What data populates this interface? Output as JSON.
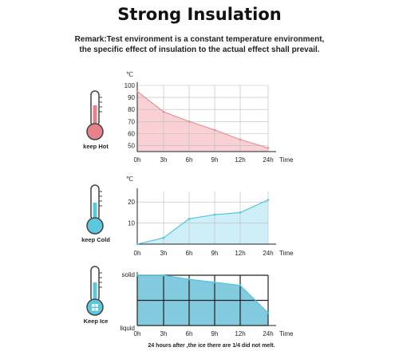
{
  "header": {
    "title": "Strong Insulation",
    "remark_line1": "Remark:Test environment is a constant temperature environment,",
    "remark_line2": "the specific effect of insulation to the actual effect shall prevail."
  },
  "icons": [
    {
      "name": "thermometer-hot-icon",
      "label": "keep Hot",
      "color": "#e8828a"
    },
    {
      "name": "thermometer-cold-icon",
      "label": "keep Cold",
      "color": "#5bc8e0"
    },
    {
      "name": "thermometer-ice-icon",
      "label": "Keep Ice",
      "color": "#5bc8e0"
    }
  ],
  "chart_data": [
    {
      "type": "area",
      "title": "",
      "xlabel": "Time",
      "ylabel": "℃",
      "x": [
        "0h",
        "3h",
        "6h",
        "9h",
        "12h",
        "24h"
      ],
      "series": [
        {
          "values": [
            95,
            78,
            70,
            63,
            55,
            48
          ]
        }
      ],
      "yticks": [
        50,
        60,
        70,
        80,
        90,
        100
      ],
      "ylim": [
        45,
        100
      ],
      "grid": true,
      "color": "#e88a92",
      "fill": "#f7c6ca"
    },
    {
      "type": "area",
      "title": "",
      "xlabel": "Time",
      "ylabel": "℃",
      "x": [
        "0h",
        "3h",
        "6h",
        "9h",
        "12h",
        "24h"
      ],
      "series": [
        {
          "values": [
            0,
            3,
            12,
            14,
            15,
            21
          ]
        }
      ],
      "yticks": [
        10,
        20
      ],
      "ylim": [
        0,
        25
      ],
      "grid": true,
      "color": "#4ec3e0",
      "fill": "#c2ebf5"
    },
    {
      "type": "area",
      "title": "",
      "xlabel": "Time",
      "ylabel": "",
      "x": [
        "0h",
        "3h",
        "6h",
        "9h",
        "12h",
        "24h"
      ],
      "series": [
        {
          "values": [
            1.0,
            1.0,
            0.92,
            0.86,
            0.8,
            0.25
          ]
        }
      ],
      "yticks": [
        "liquid",
        "solid"
      ],
      "ylim": [
        0,
        1
      ],
      "grid": true,
      "color": "#4ec3e0",
      "fill": "#6cc2d8",
      "note": "24 hours after ,the ice there are 1/4 did not melt."
    }
  ]
}
